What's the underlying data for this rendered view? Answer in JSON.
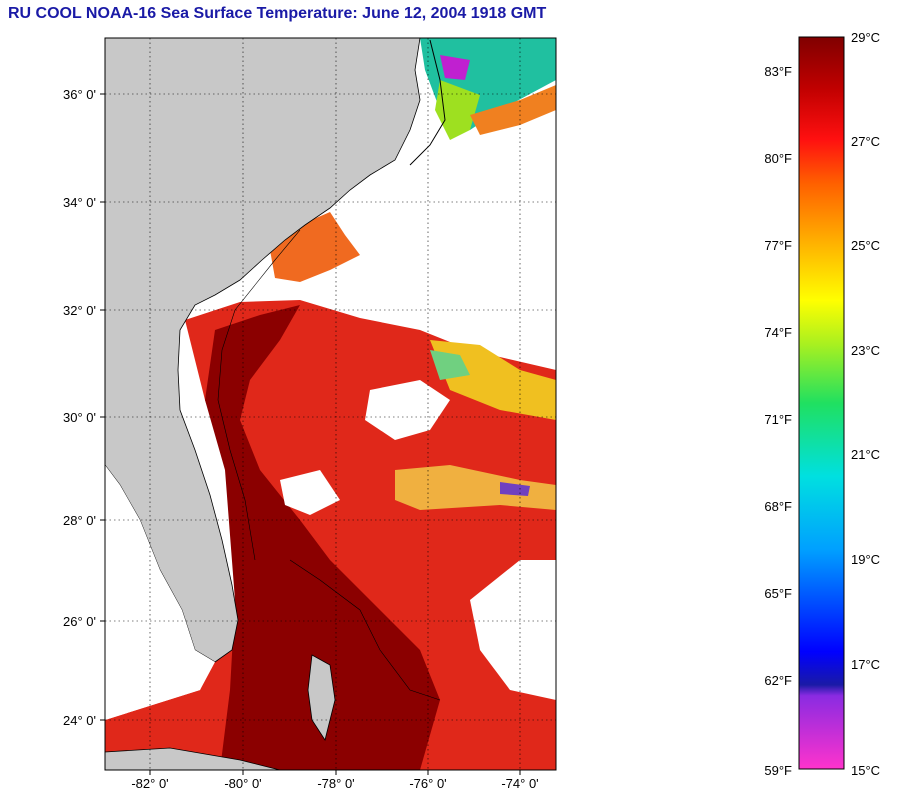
{
  "title": "RU COOL  NOAA-16  Sea Surface Temperature:  June 12, 2004 1918 GMT",
  "map": {
    "lon_labels": [
      "-82° 0'",
      "-80° 0'",
      "-78° 0'",
      "-76° 0'",
      "-74° 0'"
    ],
    "lat_labels": [
      "36° 0'",
      "34° 0'",
      "32° 0'",
      "30° 0'",
      "28° 0'",
      "26° 0'",
      "24° 0'"
    ],
    "colors": {
      "land": "#c8c8c8",
      "cloud": "#ffffff",
      "warm": "#8b0000",
      "mid": "#e0281a",
      "cool": "#f08020"
    }
  },
  "colorbar": {
    "fahrenheit_labels": [
      "83°F",
      "80°F",
      "77°F",
      "74°F",
      "71°F",
      "68°F",
      "65°F",
      "62°F",
      "59°F"
    ],
    "celsius_labels": [
      "29°C",
      "27°C",
      "25°C",
      "23°C",
      "21°C",
      "19°C",
      "17°C",
      "15°C"
    ]
  }
}
